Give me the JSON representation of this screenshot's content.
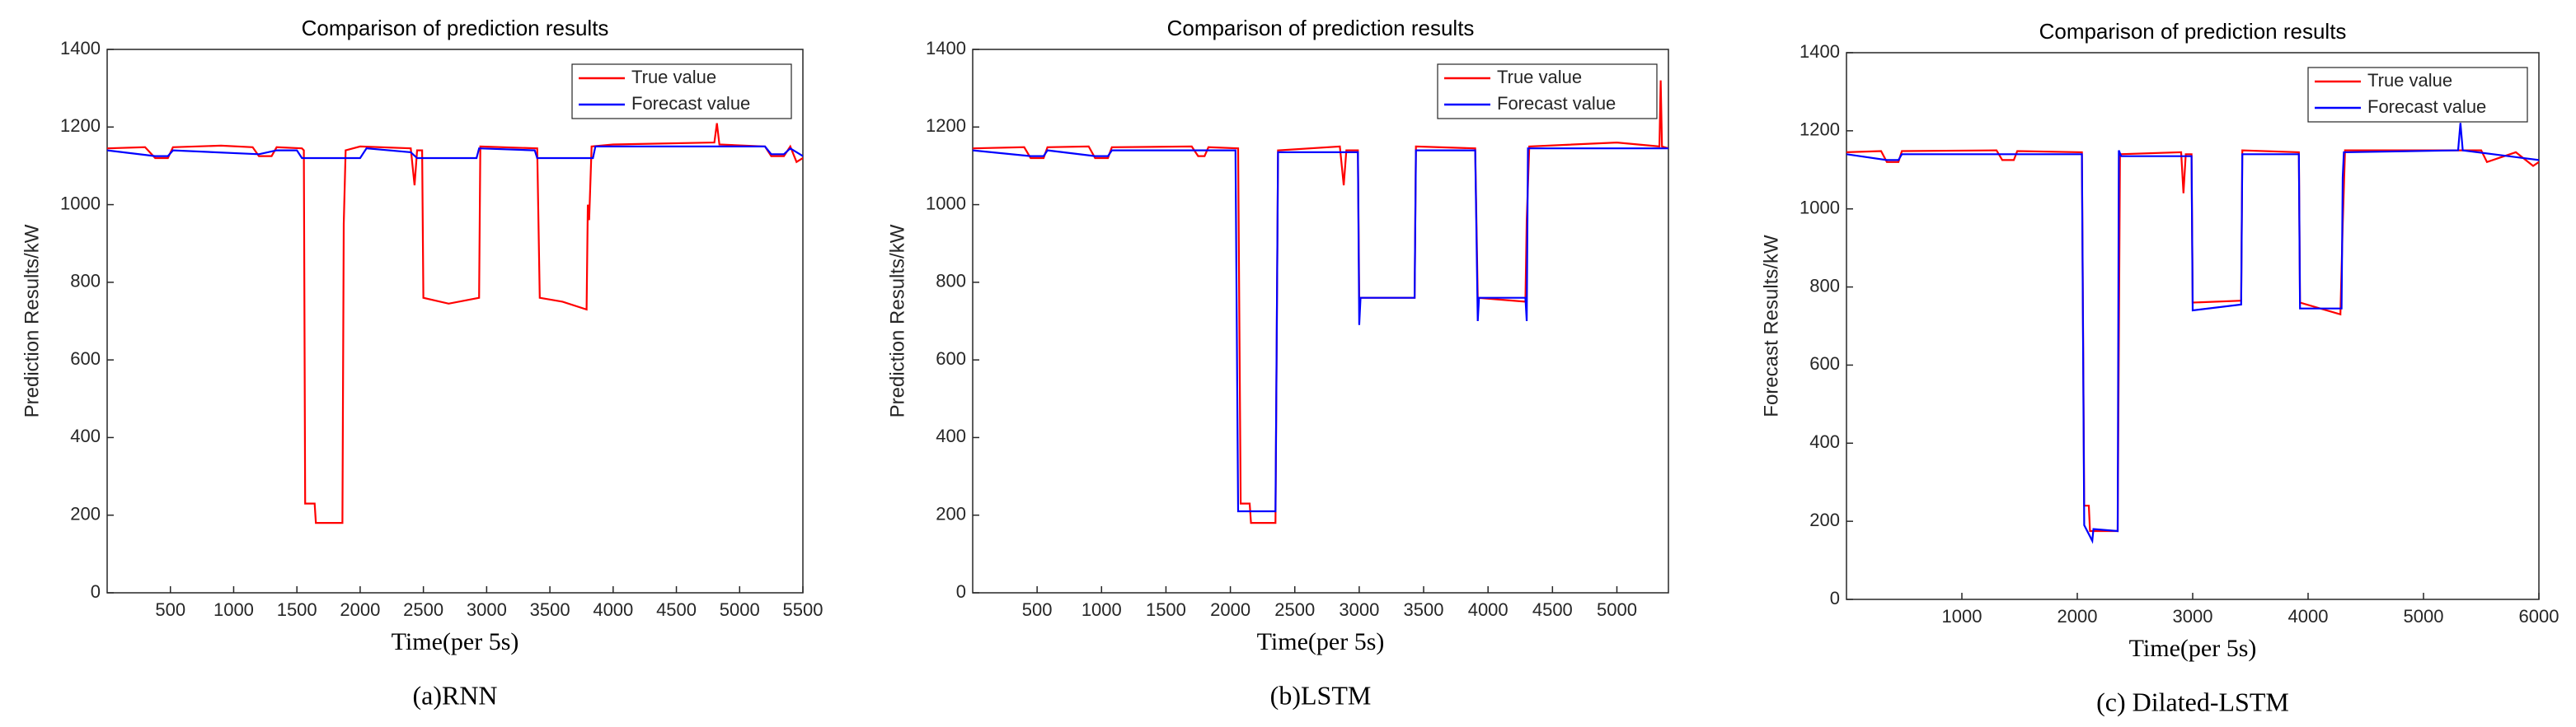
{
  "chart_data": [
    {
      "type": "line",
      "title": "Comparison of prediction results",
      "xlabel": "Time(per 5s)",
      "ylabel": "Prediction Results/kW",
      "caption": "(a)RNN",
      "xlim": [
        0,
        5500
      ],
      "xticks": [
        500,
        1000,
        1500,
        2000,
        2500,
        3000,
        3500,
        4000,
        4500,
        5000,
        5500
      ],
      "ylim": [
        0,
        1400
      ],
      "yticks": [
        0,
        200,
        400,
        600,
        800,
        1000,
        1200,
        1400
      ],
      "legend": "top-right",
      "grid": false,
      "series": [
        {
          "name": "True value",
          "color": "#ff0000",
          "x": [
            0,
            300,
            380,
            480,
            520,
            900,
            1150,
            1200,
            1300,
            1340,
            1540,
            1555,
            1565,
            1640,
            1650,
            1860,
            1870,
            1885,
            2000,
            2400,
            2430,
            2450,
            2490,
            2500,
            2700,
            2940,
            2950,
            3400,
            3420,
            3600,
            3790,
            3800,
            3810,
            3830,
            4000,
            4800,
            4820,
            4840,
            5200,
            5250,
            5350,
            5400,
            5450,
            5500
          ],
          "values": [
            1145,
            1148,
            1120,
            1120,
            1148,
            1152,
            1148,
            1125,
            1125,
            1148,
            1145,
            1140,
            230,
            230,
            180,
            180,
            950,
            1140,
            1150,
            1145,
            1050,
            1140,
            1140,
            760,
            745,
            760,
            1150,
            1145,
            760,
            750,
            730,
            1000,
            960,
            1150,
            1155,
            1160,
            1210,
            1155,
            1150,
            1125,
            1125,
            1150,
            1110,
            1120
          ]
        },
        {
          "name": "Forecast value",
          "color": "#0000ff",
          "x": [
            0,
            380,
            480,
            520,
            1200,
            1340,
            1500,
            1540,
            2000,
            2050,
            2400,
            2450,
            2920,
            2940,
            3380,
            3400,
            3840,
            3860,
            5200,
            5250,
            5350,
            5400,
            5500
          ],
          "values": [
            1140,
            1125,
            1125,
            1140,
            1130,
            1140,
            1140,
            1120,
            1120,
            1145,
            1135,
            1120,
            1120,
            1145,
            1140,
            1120,
            1120,
            1150,
            1150,
            1130,
            1130,
            1145,
            1125
          ]
        }
      ]
    },
    {
      "type": "line",
      "title": "Comparison of prediction results",
      "xlabel": "Time(per 5s)",
      "ylabel": "Prediction Results/kW",
      "caption": "(b)LSTM",
      "xlim": [
        0,
        5400
      ],
      "xticks": [
        500,
        1000,
        1500,
        2000,
        2500,
        3000,
        3500,
        4000,
        4500,
        5000
      ],
      "ylim": [
        0,
        1400
      ],
      "yticks": [
        0,
        200,
        400,
        600,
        800,
        1000,
        1200,
        1400
      ],
      "legend": "top-right",
      "grid": false,
      "series": [
        {
          "name": "True value",
          "color": "#ff0000",
          "x": [
            0,
            400,
            450,
            550,
            580,
            900,
            950,
            1050,
            1080,
            1700,
            1750,
            1800,
            1830,
            2060,
            2080,
            2150,
            2160,
            2350,
            2370,
            2850,
            2880,
            2900,
            2990,
            3000,
            3430,
            3440,
            3900,
            3920,
            4290,
            4300,
            4320,
            5000,
            5330,
            5340,
            5350,
            5400
          ],
          "values": [
            1145,
            1148,
            1120,
            1120,
            1148,
            1150,
            1120,
            1120,
            1148,
            1150,
            1125,
            1125,
            1148,
            1145,
            230,
            230,
            180,
            180,
            1140,
            1150,
            1050,
            1140,
            1140,
            760,
            760,
            1150,
            1145,
            760,
            750,
            960,
            1150,
            1160,
            1150,
            1320,
            1150,
            1145
          ]
        },
        {
          "name": "Forecast value",
          "color": "#0000ff",
          "x": [
            0,
            450,
            550,
            580,
            950,
            1050,
            1080,
            2040,
            2060,
            2350,
            2370,
            2990,
            3000,
            3010,
            3430,
            3440,
            3900,
            3920,
            3930,
            4290,
            4300,
            4310,
            5400
          ],
          "values": [
            1140,
            1125,
            1125,
            1140,
            1125,
            1125,
            1140,
            1140,
            210,
            210,
            1135,
            1135,
            690,
            760,
            760,
            1140,
            1140,
            700,
            760,
            760,
            700,
            1145,
            1145
          ]
        }
      ]
    },
    {
      "type": "line",
      "title": "Comparison of prediction results",
      "xlabel": "Time(per 5s)",
      "ylabel": "Forecast Results/kW",
      "caption": "(c) Dilated-LSTM",
      "xlim": [
        0,
        6000
      ],
      "xticks": [
        1000,
        2000,
        3000,
        4000,
        5000,
        6000
      ],
      "ylim": [
        0,
        1400
      ],
      "yticks": [
        0,
        200,
        400,
        600,
        800,
        1000,
        1200,
        1400
      ],
      "legend": "top-right",
      "grid": false,
      "series": [
        {
          "name": "True value",
          "color": "#ff0000",
          "x": [
            0,
            300,
            350,
            450,
            480,
            1300,
            1350,
            1450,
            1480,
            2040,
            2060,
            2100,
            2110,
            2350,
            2370,
            2900,
            2920,
            2940,
            2990,
            3000,
            3420,
            3430,
            3920,
            3930,
            4280,
            4300,
            4320,
            5500,
            5550,
            5800,
            5950,
            6000
          ],
          "values": [
            1145,
            1148,
            1120,
            1120,
            1148,
            1150,
            1125,
            1125,
            1148,
            1145,
            240,
            240,
            175,
            175,
            1140,
            1145,
            1040,
            1140,
            1140,
            760,
            765,
            1150,
            1145,
            760,
            730,
            960,
            1150,
            1150,
            1120,
            1145,
            1110,
            1120
          ]
        },
        {
          "name": "Forecast value",
          "color": "#0000ff",
          "x": [
            0,
            350,
            450,
            480,
            2040,
            2060,
            2130,
            2140,
            2350,
            2360,
            2380,
            2990,
            3000,
            3420,
            3430,
            3920,
            3930,
            4290,
            4300,
            4310,
            5300,
            5320,
            5340,
            6000
          ],
          "values": [
            1140,
            1125,
            1125,
            1140,
            1140,
            190,
            150,
            180,
            175,
            1150,
            1135,
            1135,
            740,
            755,
            1140,
            1140,
            745,
            745,
            1080,
            1145,
            1150,
            1220,
            1150,
            1125
          ]
        }
      ]
    }
  ]
}
